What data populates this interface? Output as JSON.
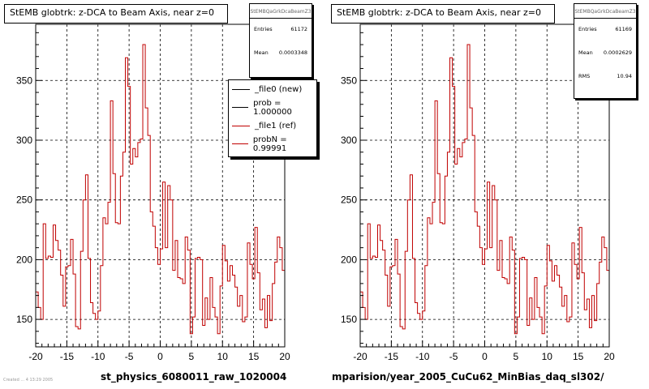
{
  "chart_data": [
    {
      "type": "line",
      "title": "StEMB globtrk: z-DCA to Beam Axis, near z=0",
      "xlabel": "st_physics_6080011_raw_1020004",
      "ylabel": "",
      "xlim": [
        -20,
        20
      ],
      "ylim": [
        127,
        397
      ],
      "x_ticks": [
        -20,
        -15,
        -10,
        -5,
        0,
        5,
        10,
        15,
        20
      ],
      "y_ticks": [
        150,
        200,
        250,
        300,
        350
      ],
      "grid": true,
      "legend_position": "top-right",
      "stats": {
        "name": "StEMBQaGrkDcaBeamZ3",
        "rows": [
          {
            "label": "Entries",
            "value": "61172"
          },
          {
            "label": "Mean",
            "value": "0.0003348"
          }
        ]
      },
      "legend": [
        {
          "label": "_file0 (new)",
          "color": "#000000"
        },
        {
          "label": "prob = 1.000000",
          "color": "#000000"
        },
        {
          "label": "_file1 (ref)",
          "color": "#c00000"
        },
        {
          "label": "probN = 0.99991",
          "color": "#c00000"
        }
      ],
      "series": [
        {
          "name": "_file1 (ref)",
          "color": "#c00000",
          "bin_width": 0.4,
          "x_start": -20,
          "values": [
            173,
            160,
            150,
            230,
            201,
            203,
            202,
            229,
            216,
            208,
            187,
            161,
            194,
            195,
            217,
            188,
            144,
            142,
            207,
            250,
            271,
            201,
            164,
            155,
            150,
            157,
            195,
            235,
            230,
            248,
            333,
            272,
            231,
            230,
            270,
            290,
            369,
            345,
            280,
            293,
            286,
            298,
            301,
            380,
            327,
            304,
            240,
            228,
            210,
            196,
            209,
            265,
            210,
            262,
            250,
            191,
            216,
            185,
            184,
            180,
            219,
            208,
            138,
            152,
            201,
            202,
            200,
            145,
            168,
            150,
            185,
            160,
            152,
            138,
            178,
            212,
            199,
            182,
            195,
            187,
            177,
            161,
            170,
            148,
            152,
            214,
            196,
            184,
            227,
            189,
            158,
            167,
            143,
            170,
            149,
            180,
            198,
            219,
            210,
            191
          ]
        }
      ]
    },
    {
      "type": "line",
      "title": "StEMB globtrk: z-DCA to Beam Axis, near z=0",
      "xlabel": "mparision/year_2005_CuCu62_MinBias_daq_sl302/",
      "ylabel": "",
      "xlim": [
        -20,
        20
      ],
      "ylim": [
        127,
        397
      ],
      "x_ticks": [
        -20,
        -15,
        -10,
        -5,
        0,
        5,
        10,
        15,
        20
      ],
      "y_ticks": [
        150,
        200,
        250,
        300,
        350
      ],
      "grid": true,
      "stats": {
        "name": "StEMBQaGrkDcaBeamZ3",
        "rows": [
          {
            "label": "Entries",
            "value": "61169"
          },
          {
            "label": "Mean",
            "value": "0.0002629"
          },
          {
            "label": "RMS",
            "value": "10.94"
          }
        ]
      },
      "series": [
        {
          "name": "_file1 (ref)",
          "color": "#c00000",
          "bin_width": 0.4,
          "x_start": -20,
          "values": [
            173,
            160,
            150,
            230,
            201,
            203,
            202,
            229,
            216,
            208,
            187,
            161,
            194,
            195,
            217,
            188,
            144,
            142,
            207,
            250,
            271,
            201,
            164,
            155,
            150,
            157,
            195,
            235,
            230,
            248,
            333,
            272,
            231,
            230,
            270,
            290,
            369,
            345,
            280,
            293,
            286,
            298,
            301,
            380,
            327,
            304,
            240,
            228,
            210,
            196,
            209,
            265,
            210,
            262,
            250,
            191,
            216,
            185,
            184,
            180,
            219,
            208,
            138,
            152,
            201,
            202,
            200,
            145,
            168,
            150,
            185,
            160,
            152,
            138,
            178,
            212,
            199,
            182,
            195,
            187,
            177,
            161,
            170,
            148,
            152,
            214,
            196,
            184,
            227,
            189,
            158,
            167,
            143,
            170,
            149,
            180,
            198,
            219,
            210,
            191
          ]
        }
      ]
    }
  ],
  "footer_text": "Created ... 4 13:29 2005"
}
